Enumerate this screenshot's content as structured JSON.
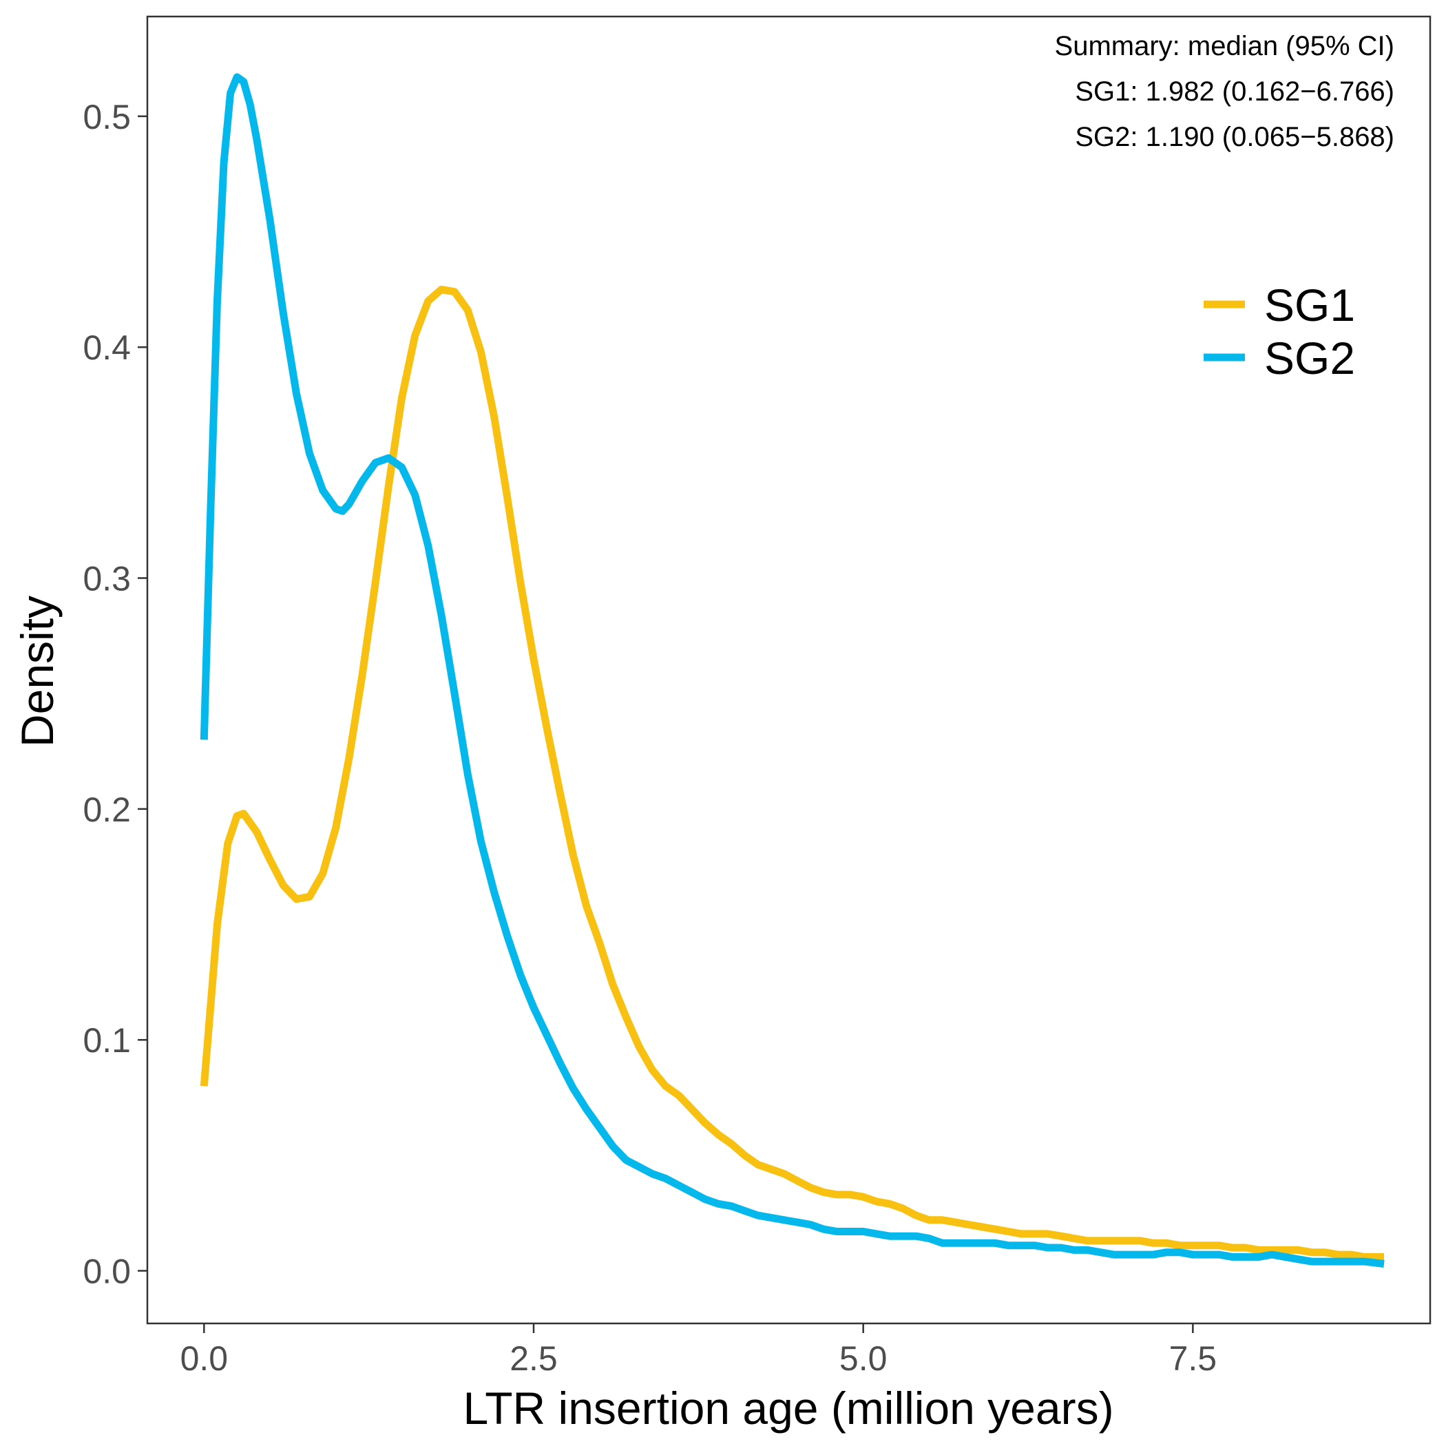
{
  "chart_data": {
    "type": "line",
    "xlabel": "LTR insertion age (million years)",
    "ylabel": "Density",
    "xlim": [
      -0.43,
      9.3
    ],
    "ylim": [
      -0.0228,
      0.5432
    ],
    "x_ticks": [
      0,
      2.5,
      5,
      7.5
    ],
    "x_tick_labels": [
      "0.0",
      "2.5",
      "5.0",
      "7.5"
    ],
    "y_ticks": [
      0,
      0.1,
      0.2,
      0.3,
      0.4,
      0.5
    ],
    "y_tick_labels": [
      "0.0",
      "0.1",
      "0.2",
      "0.3",
      "0.4",
      "0.5"
    ],
    "grid": false,
    "legend_position": "right",
    "annotation_lines": [
      "Summary: median (95% CI)",
      "SG1: 1.982 (0.162−6.766)",
      "SG2: 1.190 (0.065−5.868)"
    ],
    "series": [
      {
        "name": "SG1",
        "color": "#F8C010",
        "points": [
          [
            0.0,
            0.08
          ],
          [
            0.1,
            0.15
          ],
          [
            0.18,
            0.185
          ],
          [
            0.25,
            0.197
          ],
          [
            0.3,
            0.198
          ],
          [
            0.4,
            0.19
          ],
          [
            0.5,
            0.178
          ],
          [
            0.6,
            0.167
          ],
          [
            0.7,
            0.161
          ],
          [
            0.8,
            0.162
          ],
          [
            0.9,
            0.172
          ],
          [
            1.0,
            0.192
          ],
          [
            1.1,
            0.222
          ],
          [
            1.2,
            0.258
          ],
          [
            1.3,
            0.298
          ],
          [
            1.4,
            0.34
          ],
          [
            1.5,
            0.378
          ],
          [
            1.6,
            0.405
          ],
          [
            1.7,
            0.42
          ],
          [
            1.8,
            0.425
          ],
          [
            1.9,
            0.424
          ],
          [
            2.0,
            0.416
          ],
          [
            2.1,
            0.398
          ],
          [
            2.2,
            0.37
          ],
          [
            2.3,
            0.335
          ],
          [
            2.4,
            0.298
          ],
          [
            2.5,
            0.265
          ],
          [
            2.6,
            0.235
          ],
          [
            2.7,
            0.207
          ],
          [
            2.8,
            0.18
          ],
          [
            2.9,
            0.158
          ],
          [
            3.0,
            0.142
          ],
          [
            3.1,
            0.124
          ],
          [
            3.2,
            0.11
          ],
          [
            3.3,
            0.097
          ],
          [
            3.4,
            0.087
          ],
          [
            3.5,
            0.08
          ],
          [
            3.6,
            0.076
          ],
          [
            3.7,
            0.07
          ],
          [
            3.8,
            0.064
          ],
          [
            3.9,
            0.059
          ],
          [
            4.0,
            0.055
          ],
          [
            4.1,
            0.05
          ],
          [
            4.2,
            0.046
          ],
          [
            4.3,
            0.044
          ],
          [
            4.4,
            0.042
          ],
          [
            4.5,
            0.039
          ],
          [
            4.6,
            0.036
          ],
          [
            4.7,
            0.034
          ],
          [
            4.8,
            0.033
          ],
          [
            4.9,
            0.033
          ],
          [
            5.0,
            0.032
          ],
          [
            5.1,
            0.03
          ],
          [
            5.2,
            0.029
          ],
          [
            5.3,
            0.027
          ],
          [
            5.4,
            0.024
          ],
          [
            5.5,
            0.022
          ],
          [
            5.6,
            0.022
          ],
          [
            5.7,
            0.021
          ],
          [
            5.8,
            0.02
          ],
          [
            5.9,
            0.019
          ],
          [
            6.0,
            0.018
          ],
          [
            6.1,
            0.017
          ],
          [
            6.2,
            0.016
          ],
          [
            6.3,
            0.016
          ],
          [
            6.4,
            0.016
          ],
          [
            6.5,
            0.015
          ],
          [
            6.6,
            0.014
          ],
          [
            6.7,
            0.013
          ],
          [
            6.8,
            0.013
          ],
          [
            6.9,
            0.013
          ],
          [
            7.0,
            0.013
          ],
          [
            7.1,
            0.013
          ],
          [
            7.2,
            0.012
          ],
          [
            7.3,
            0.012
          ],
          [
            7.4,
            0.011
          ],
          [
            7.5,
            0.011
          ],
          [
            7.6,
            0.011
          ],
          [
            7.7,
            0.011
          ],
          [
            7.8,
            0.01
          ],
          [
            7.9,
            0.01
          ],
          [
            8.0,
            0.009
          ],
          [
            8.1,
            0.009
          ],
          [
            8.2,
            0.009
          ],
          [
            8.3,
            0.009
          ],
          [
            8.4,
            0.008
          ],
          [
            8.5,
            0.008
          ],
          [
            8.6,
            0.007
          ],
          [
            8.7,
            0.007
          ],
          [
            8.8,
            0.006
          ],
          [
            8.95,
            0.006
          ]
        ]
      },
      {
        "name": "SG2",
        "color": "#04B8EC",
        "points": [
          [
            0.0,
            0.23
          ],
          [
            0.05,
            0.33
          ],
          [
            0.1,
            0.42
          ],
          [
            0.15,
            0.48
          ],
          [
            0.2,
            0.51
          ],
          [
            0.25,
            0.517
          ],
          [
            0.3,
            0.515
          ],
          [
            0.35,
            0.505
          ],
          [
            0.4,
            0.49
          ],
          [
            0.5,
            0.455
          ],
          [
            0.6,
            0.415
          ],
          [
            0.7,
            0.38
          ],
          [
            0.8,
            0.354
          ],
          [
            0.9,
            0.338
          ],
          [
            1.0,
            0.33
          ],
          [
            1.05,
            0.329
          ],
          [
            1.1,
            0.332
          ],
          [
            1.2,
            0.342
          ],
          [
            1.3,
            0.35
          ],
          [
            1.4,
            0.352
          ],
          [
            1.5,
            0.348
          ],
          [
            1.6,
            0.336
          ],
          [
            1.7,
            0.314
          ],
          [
            1.8,
            0.284
          ],
          [
            1.9,
            0.25
          ],
          [
            2.0,
            0.215
          ],
          [
            2.1,
            0.186
          ],
          [
            2.2,
            0.164
          ],
          [
            2.3,
            0.145
          ],
          [
            2.4,
            0.128
          ],
          [
            2.5,
            0.114
          ],
          [
            2.6,
            0.102
          ],
          [
            2.7,
            0.09
          ],
          [
            2.8,
            0.079
          ],
          [
            2.9,
            0.07
          ],
          [
            3.0,
            0.062
          ],
          [
            3.1,
            0.054
          ],
          [
            3.2,
            0.048
          ],
          [
            3.3,
            0.045
          ],
          [
            3.4,
            0.042
          ],
          [
            3.5,
            0.04
          ],
          [
            3.6,
            0.037
          ],
          [
            3.7,
            0.034
          ],
          [
            3.8,
            0.031
          ],
          [
            3.9,
            0.029
          ],
          [
            4.0,
            0.028
          ],
          [
            4.1,
            0.026
          ],
          [
            4.2,
            0.024
          ],
          [
            4.3,
            0.023
          ],
          [
            4.4,
            0.022
          ],
          [
            4.5,
            0.021
          ],
          [
            4.6,
            0.02
          ],
          [
            4.7,
            0.018
          ],
          [
            4.8,
            0.017
          ],
          [
            4.9,
            0.017
          ],
          [
            5.0,
            0.017
          ],
          [
            5.1,
            0.016
          ],
          [
            5.2,
            0.015
          ],
          [
            5.3,
            0.015
          ],
          [
            5.4,
            0.015
          ],
          [
            5.5,
            0.014
          ],
          [
            5.6,
            0.012
          ],
          [
            5.7,
            0.012
          ],
          [
            5.8,
            0.012
          ],
          [
            5.9,
            0.012
          ],
          [
            6.0,
            0.012
          ],
          [
            6.1,
            0.011
          ],
          [
            6.2,
            0.011
          ],
          [
            6.3,
            0.011
          ],
          [
            6.4,
            0.01
          ],
          [
            6.5,
            0.01
          ],
          [
            6.6,
            0.009
          ],
          [
            6.7,
            0.009
          ],
          [
            6.8,
            0.008
          ],
          [
            6.9,
            0.007
          ],
          [
            7.0,
            0.007
          ],
          [
            7.1,
            0.007
          ],
          [
            7.2,
            0.007
          ],
          [
            7.3,
            0.008
          ],
          [
            7.4,
            0.008
          ],
          [
            7.5,
            0.007
          ],
          [
            7.6,
            0.007
          ],
          [
            7.7,
            0.007
          ],
          [
            7.8,
            0.006
          ],
          [
            7.9,
            0.006
          ],
          [
            8.0,
            0.006
          ],
          [
            8.1,
            0.007
          ],
          [
            8.2,
            0.006
          ],
          [
            8.3,
            0.005
          ],
          [
            8.4,
            0.004
          ],
          [
            8.5,
            0.004
          ],
          [
            8.6,
            0.004
          ],
          [
            8.7,
            0.004
          ],
          [
            8.8,
            0.004
          ],
          [
            8.95,
            0.003
          ]
        ]
      }
    ]
  }
}
